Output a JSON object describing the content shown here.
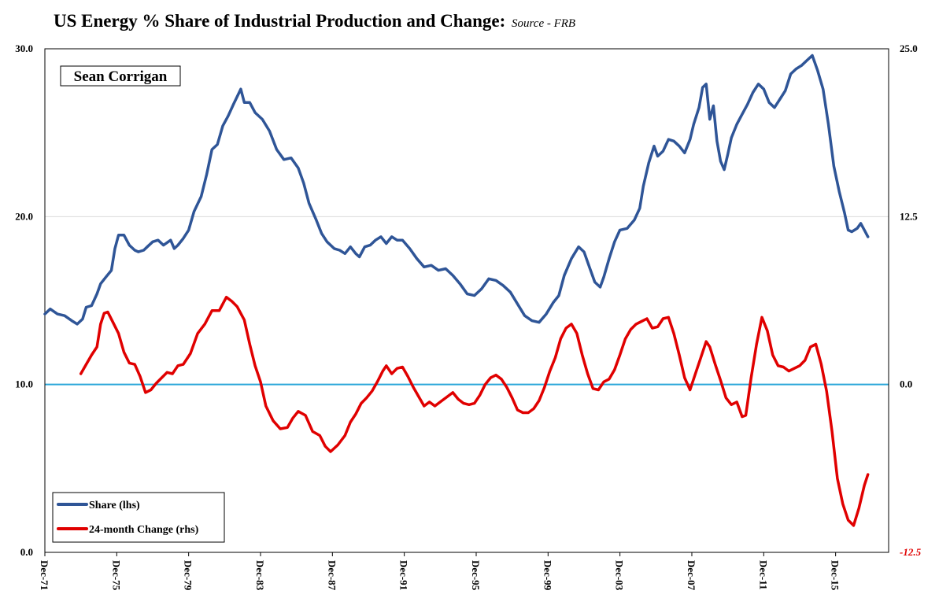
{
  "chart_data": {
    "type": "line",
    "title": "US Energy % Share of Industrial Production and Change:",
    "subtitle": "Source - FRB",
    "annotation": "Sean Corrigan",
    "x_tick_labels": [
      "Dec-71",
      "Dec-75",
      "Dec-79",
      "Dec-83",
      "Dec-87",
      "Dec-91",
      "Dec-95",
      "Dec-99",
      "Dec-03",
      "Dec-07",
      "Dec-11",
      "Dec-15"
    ],
    "y_left": {
      "ylim": [
        0,
        30
      ],
      "ticks": [
        "0.0",
        "10.0",
        "20.0",
        "30.0"
      ]
    },
    "y_right": {
      "ylim": [
        -12.5,
        25
      ],
      "ticks": [
        "-12.5",
        "0.0",
        "12.5",
        "25.0"
      ],
      "color": "#e00000"
    },
    "legend_placement": "bottom-left",
    "series": [
      {
        "name": "Share (lhs)",
        "axis": "left",
        "color": "#2f5597",
        "points": [
          [
            1971.9,
            14.2
          ],
          [
            1972.2,
            14.5
          ],
          [
            1972.6,
            14.2
          ],
          [
            1973.0,
            14.1
          ],
          [
            1973.4,
            13.8
          ],
          [
            1973.7,
            13.6
          ],
          [
            1974.0,
            13.9
          ],
          [
            1974.2,
            14.6
          ],
          [
            1974.5,
            14.7
          ],
          [
            1974.8,
            15.4
          ],
          [
            1975.0,
            16.0
          ],
          [
            1975.3,
            16.4
          ],
          [
            1975.6,
            16.8
          ],
          [
            1975.8,
            18.1
          ],
          [
            1976.0,
            18.9
          ],
          [
            1976.3,
            18.9
          ],
          [
            1976.6,
            18.3
          ],
          [
            1976.9,
            18.0
          ],
          [
            1977.1,
            17.9
          ],
          [
            1977.4,
            18.0
          ],
          [
            1977.6,
            18.2
          ],
          [
            1977.9,
            18.5
          ],
          [
            1978.2,
            18.6
          ],
          [
            1978.5,
            18.3
          ],
          [
            1978.9,
            18.6
          ],
          [
            1979.1,
            18.1
          ],
          [
            1979.3,
            18.3
          ],
          [
            1979.6,
            18.7
          ],
          [
            1979.9,
            19.2
          ],
          [
            1980.2,
            20.3
          ],
          [
            1980.6,
            21.2
          ],
          [
            1980.9,
            22.5
          ],
          [
            1981.2,
            24.0
          ],
          [
            1981.5,
            24.3
          ],
          [
            1981.8,
            25.4
          ],
          [
            1982.1,
            26.0
          ],
          [
            1982.4,
            26.7
          ],
          [
            1982.8,
            27.6
          ],
          [
            1983.0,
            26.8
          ],
          [
            1983.3,
            26.8
          ],
          [
            1983.6,
            26.2
          ],
          [
            1984.0,
            25.8
          ],
          [
            1984.4,
            25.1
          ],
          [
            1984.8,
            24.0
          ],
          [
            1985.2,
            23.4
          ],
          [
            1985.6,
            23.5
          ],
          [
            1986.0,
            22.9
          ],
          [
            1986.3,
            22.0
          ],
          [
            1986.6,
            20.8
          ],
          [
            1987.0,
            19.8
          ],
          [
            1987.3,
            19.0
          ],
          [
            1987.6,
            18.5
          ],
          [
            1988.0,
            18.1
          ],
          [
            1988.3,
            18.0
          ],
          [
            1988.6,
            17.8
          ],
          [
            1988.9,
            18.2
          ],
          [
            1989.2,
            17.8
          ],
          [
            1989.4,
            17.6
          ],
          [
            1989.7,
            18.2
          ],
          [
            1990.0,
            18.3
          ],
          [
            1990.3,
            18.6
          ],
          [
            1990.6,
            18.8
          ],
          [
            1990.9,
            18.4
          ],
          [
            1991.2,
            18.8
          ],
          [
            1991.5,
            18.6
          ],
          [
            1991.8,
            18.6
          ],
          [
            1992.2,
            18.1
          ],
          [
            1992.6,
            17.5
          ],
          [
            1993.0,
            17.0
          ],
          [
            1993.4,
            17.1
          ],
          [
            1993.8,
            16.8
          ],
          [
            1994.2,
            16.9
          ],
          [
            1994.6,
            16.5
          ],
          [
            1995.0,
            16.0
          ],
          [
            1995.4,
            15.4
          ],
          [
            1995.8,
            15.3
          ],
          [
            1996.2,
            15.7
          ],
          [
            1996.6,
            16.3
          ],
          [
            1997.0,
            16.2
          ],
          [
            1997.4,
            15.9
          ],
          [
            1997.8,
            15.5
          ],
          [
            1998.2,
            14.8
          ],
          [
            1998.6,
            14.1
          ],
          [
            1999.0,
            13.8
          ],
          [
            1999.4,
            13.7
          ],
          [
            1999.8,
            14.2
          ],
          [
            2000.2,
            14.9
          ],
          [
            2000.5,
            15.3
          ],
          [
            2000.8,
            16.5
          ],
          [
            2001.2,
            17.5
          ],
          [
            2001.6,
            18.2
          ],
          [
            2001.9,
            17.9
          ],
          [
            2002.2,
            17.0
          ],
          [
            2002.5,
            16.1
          ],
          [
            2002.8,
            15.8
          ],
          [
            2003.0,
            16.4
          ],
          [
            2003.3,
            17.5
          ],
          [
            2003.6,
            18.5
          ],
          [
            2003.9,
            19.2
          ],
          [
            2004.3,
            19.3
          ],
          [
            2004.7,
            19.8
          ],
          [
            2005.0,
            20.5
          ],
          [
            2005.2,
            21.8
          ],
          [
            2005.5,
            23.2
          ],
          [
            2005.8,
            24.2
          ],
          [
            2006.0,
            23.6
          ],
          [
            2006.3,
            23.9
          ],
          [
            2006.6,
            24.6
          ],
          [
            2006.9,
            24.5
          ],
          [
            2007.2,
            24.2
          ],
          [
            2007.5,
            23.8
          ],
          [
            2007.8,
            24.6
          ],
          [
            2008.0,
            25.5
          ],
          [
            2008.3,
            26.5
          ],
          [
            2008.5,
            27.7
          ],
          [
            2008.7,
            27.9
          ],
          [
            2008.9,
            25.8
          ],
          [
            2009.1,
            26.6
          ],
          [
            2009.3,
            24.5
          ],
          [
            2009.5,
            23.3
          ],
          [
            2009.7,
            22.8
          ],
          [
            2009.9,
            23.7
          ],
          [
            2010.1,
            24.7
          ],
          [
            2010.4,
            25.5
          ],
          [
            2010.7,
            26.1
          ],
          [
            2011.0,
            26.7
          ],
          [
            2011.3,
            27.4
          ],
          [
            2011.6,
            27.9
          ],
          [
            2011.9,
            27.6
          ],
          [
            2012.2,
            26.8
          ],
          [
            2012.5,
            26.5
          ],
          [
            2012.8,
            27.0
          ],
          [
            2013.1,
            27.5
          ],
          [
            2013.4,
            28.5
          ],
          [
            2013.7,
            28.8
          ],
          [
            2014.0,
            29.0
          ],
          [
            2014.3,
            29.3
          ],
          [
            2014.6,
            29.6
          ],
          [
            2014.9,
            28.7
          ],
          [
            2015.2,
            27.6
          ],
          [
            2015.5,
            25.5
          ],
          [
            2015.8,
            23.0
          ],
          [
            2016.1,
            21.5
          ],
          [
            2016.4,
            20.2
          ],
          [
            2016.6,
            19.2
          ],
          [
            2016.8,
            19.1
          ],
          [
            2017.1,
            19.3
          ],
          [
            2017.3,
            19.6
          ],
          [
            2017.5,
            19.2
          ],
          [
            2017.7,
            18.8
          ]
        ]
      },
      {
        "name": "24-month Change (rhs)",
        "axis": "right",
        "color": "#e00000",
        "points": [
          [
            1973.9,
            0.8
          ],
          [
            1974.2,
            1.5
          ],
          [
            1974.5,
            2.2
          ],
          [
            1974.8,
            2.8
          ],
          [
            1975.0,
            4.5
          ],
          [
            1975.2,
            5.3
          ],
          [
            1975.4,
            5.4
          ],
          [
            1975.7,
            4.6
          ],
          [
            1976.0,
            3.8
          ],
          [
            1976.3,
            2.4
          ],
          [
            1976.6,
            1.6
          ],
          [
            1976.9,
            1.5
          ],
          [
            1977.2,
            0.6
          ],
          [
            1977.5,
            -0.6
          ],
          [
            1977.8,
            -0.4
          ],
          [
            1978.1,
            0.1
          ],
          [
            1978.4,
            0.5
          ],
          [
            1978.7,
            0.9
          ],
          [
            1979.0,
            0.8
          ],
          [
            1979.3,
            1.4
          ],
          [
            1979.6,
            1.5
          ],
          [
            1980.0,
            2.3
          ],
          [
            1980.4,
            3.8
          ],
          [
            1980.8,
            4.5
          ],
          [
            1981.2,
            5.5
          ],
          [
            1981.6,
            5.5
          ],
          [
            1982.0,
            6.5
          ],
          [
            1982.3,
            6.2
          ],
          [
            1982.6,
            5.8
          ],
          [
            1983.0,
            4.8
          ],
          [
            1983.3,
            3.0
          ],
          [
            1983.6,
            1.4
          ],
          [
            1983.9,
            0.2
          ],
          [
            1984.2,
            -1.6
          ],
          [
            1984.6,
            -2.7
          ],
          [
            1985.0,
            -3.3
          ],
          [
            1985.4,
            -3.2
          ],
          [
            1985.7,
            -2.5
          ],
          [
            1986.0,
            -2.0
          ],
          [
            1986.4,
            -2.3
          ],
          [
            1986.8,
            -3.5
          ],
          [
            1987.2,
            -3.8
          ],
          [
            1987.5,
            -4.6
          ],
          [
            1987.8,
            -5.0
          ],
          [
            1988.2,
            -4.5
          ],
          [
            1988.6,
            -3.8
          ],
          [
            1988.9,
            -2.8
          ],
          [
            1989.2,
            -2.2
          ],
          [
            1989.5,
            -1.4
          ],
          [
            1989.8,
            -1.0
          ],
          [
            1990.1,
            -0.5
          ],
          [
            1990.4,
            0.2
          ],
          [
            1990.7,
            1.0
          ],
          [
            1990.9,
            1.4
          ],
          [
            1991.2,
            0.8
          ],
          [
            1991.5,
            1.2
          ],
          [
            1991.8,
            1.3
          ],
          [
            1992.1,
            0.6
          ],
          [
            1992.4,
            -0.2
          ],
          [
            1992.7,
            -0.9
          ],
          [
            1993.0,
            -1.6
          ],
          [
            1993.3,
            -1.3
          ],
          [
            1993.6,
            -1.6
          ],
          [
            1994.0,
            -1.2
          ],
          [
            1994.3,
            -0.9
          ],
          [
            1994.6,
            -0.6
          ],
          [
            1994.9,
            -1.1
          ],
          [
            1995.2,
            -1.4
          ],
          [
            1995.5,
            -1.5
          ],
          [
            1995.8,
            -1.4
          ],
          [
            1996.1,
            -0.8
          ],
          [
            1996.4,
            0.0
          ],
          [
            1996.7,
            0.5
          ],
          [
            1997.0,
            0.7
          ],
          [
            1997.3,
            0.4
          ],
          [
            1997.6,
            -0.2
          ],
          [
            1997.9,
            -1.0
          ],
          [
            1998.2,
            -1.9
          ],
          [
            1998.5,
            -2.1
          ],
          [
            1998.8,
            -2.1
          ],
          [
            1999.1,
            -1.8
          ],
          [
            1999.4,
            -1.2
          ],
          [
            1999.7,
            -0.2
          ],
          [
            2000.0,
            1.0
          ],
          [
            2000.3,
            2.0
          ],
          [
            2000.6,
            3.4
          ],
          [
            2000.9,
            4.2
          ],
          [
            2001.2,
            4.5
          ],
          [
            2001.5,
            3.8
          ],
          [
            2001.8,
            2.2
          ],
          [
            2002.1,
            0.8
          ],
          [
            2002.4,
            -0.3
          ],
          [
            2002.7,
            -0.4
          ],
          [
            2003.0,
            0.2
          ],
          [
            2003.3,
            0.4
          ],
          [
            2003.6,
            1.1
          ],
          [
            2003.9,
            2.2
          ],
          [
            2004.2,
            3.4
          ],
          [
            2004.5,
            4.1
          ],
          [
            2004.8,
            4.5
          ],
          [
            2005.1,
            4.7
          ],
          [
            2005.4,
            4.9
          ],
          [
            2005.7,
            4.2
          ],
          [
            2006.0,
            4.3
          ],
          [
            2006.3,
            4.9
          ],
          [
            2006.6,
            5.0
          ],
          [
            2006.9,
            3.8
          ],
          [
            2007.2,
            2.2
          ],
          [
            2007.5,
            0.5
          ],
          [
            2007.8,
            -0.4
          ],
          [
            2008.1,
            0.8
          ],
          [
            2008.4,
            2.0
          ],
          [
            2008.7,
            3.2
          ],
          [
            2008.9,
            2.8
          ],
          [
            2009.2,
            1.5
          ],
          [
            2009.5,
            0.3
          ],
          [
            2009.8,
            -1.0
          ],
          [
            2010.1,
            -1.5
          ],
          [
            2010.4,
            -1.3
          ],
          [
            2010.7,
            -2.4
          ],
          [
            2010.9,
            -2.3
          ],
          [
            2011.2,
            0.5
          ],
          [
            2011.5,
            3.0
          ],
          [
            2011.8,
            5.0
          ],
          [
            2012.1,
            4.0
          ],
          [
            2012.4,
            2.2
          ],
          [
            2012.7,
            1.4
          ],
          [
            2013.0,
            1.3
          ],
          [
            2013.3,
            1.0
          ],
          [
            2013.6,
            1.2
          ],
          [
            2013.9,
            1.4
          ],
          [
            2014.2,
            1.8
          ],
          [
            2014.5,
            2.8
          ],
          [
            2014.8,
            3.0
          ],
          [
            2015.1,
            1.5
          ],
          [
            2015.4,
            -0.5
          ],
          [
            2015.7,
            -3.5
          ],
          [
            2016.0,
            -7.0
          ],
          [
            2016.3,
            -8.9
          ],
          [
            2016.6,
            -10.1
          ],
          [
            2016.9,
            -10.5
          ],
          [
            2017.2,
            -9.2
          ],
          [
            2017.5,
            -7.5
          ],
          [
            2017.7,
            -6.7
          ]
        ]
      }
    ]
  }
}
